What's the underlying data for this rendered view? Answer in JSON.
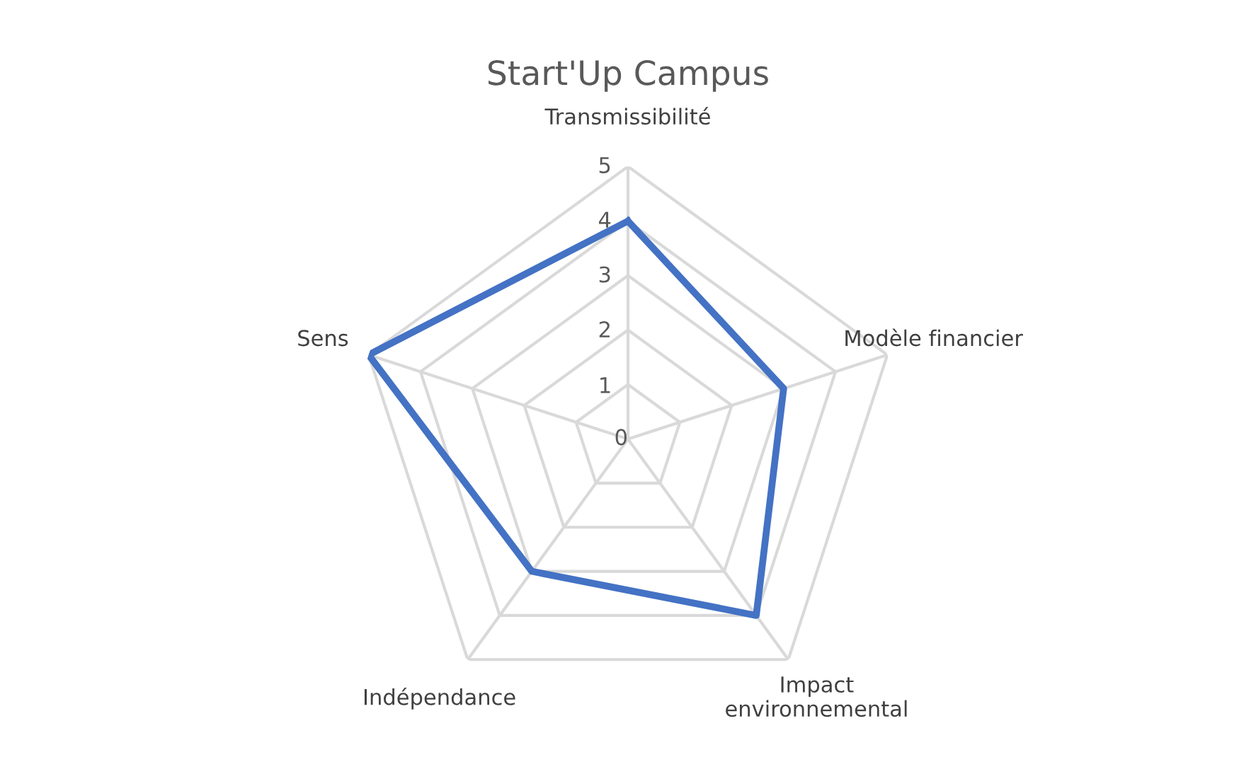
{
  "chart_data": {
    "type": "radar",
    "title": "Start'Up Campus",
    "categories": [
      "Transmissibilité",
      "Modèle financier",
      "Impact\nenvironnemental",
      "Indépendance",
      "Sens"
    ],
    "series": [
      {
        "color": "#4472c4",
        "values": [
          4,
          3,
          4,
          3,
          5
        ]
      }
    ],
    "ylim": [
      0,
      5
    ],
    "yticks": [
      0,
      1,
      2,
      3,
      4,
      5
    ],
    "grid": true,
    "legend": false,
    "marker": "none",
    "line_style": "solid"
  }
}
